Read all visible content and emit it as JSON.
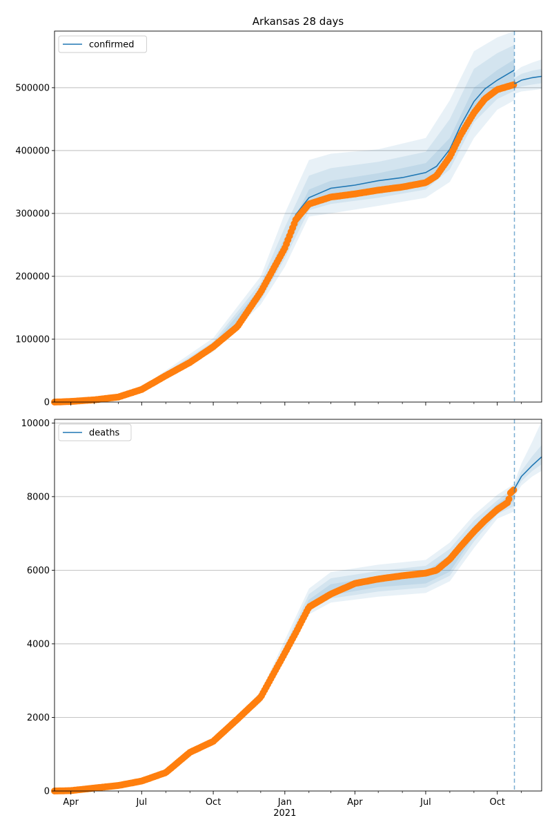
{
  "chart_data": [
    {
      "type": "line",
      "title": "Arkansas 28 days",
      "legend": {
        "label": "confirmed",
        "placement": "top-left"
      },
      "ylim": [
        0,
        590000
      ],
      "yticks": [
        0,
        100000,
        200000,
        300000,
        400000,
        500000
      ],
      "ytick_labels": [
        "0",
        "100000",
        "200000",
        "300000",
        "400000",
        "500000"
      ],
      "grid": "y",
      "forecast_start": "2021-10-23",
      "observed": {
        "x": [
          "2020-03-11",
          "2020-04-01",
          "2020-05-01",
          "2020-06-01",
          "2020-07-01",
          "2020-08-01",
          "2020-09-01",
          "2020-10-01",
          "2020-11-01",
          "2020-12-01",
          "2021-01-01",
          "2021-01-15",
          "2021-02-01",
          "2021-03-01",
          "2021-04-01",
          "2021-05-01",
          "2021-06-01",
          "2021-07-01",
          "2021-07-15",
          "2021-08-01",
          "2021-08-15",
          "2021-09-01",
          "2021-09-15",
          "2021-10-01",
          "2021-10-23"
        ],
        "y": [
          0,
          1000,
          3500,
          8000,
          20000,
          42000,
          63000,
          88000,
          120000,
          175000,
          245000,
          290000,
          315000,
          326000,
          331000,
          337000,
          342000,
          349000,
          360000,
          390000,
          425000,
          460000,
          482000,
          497000,
          505000
        ]
      },
      "model": {
        "x": [
          "2020-12-01",
          "2021-01-01",
          "2021-01-15",
          "2021-02-01",
          "2021-03-01",
          "2021-04-01",
          "2021-05-01",
          "2021-06-01",
          "2021-07-01",
          "2021-07-15",
          "2021-08-01",
          "2021-08-15",
          "2021-09-01",
          "2021-09-15",
          "2021-10-01",
          "2021-10-23"
        ],
        "y": [
          175000,
          248000,
          298000,
          325000,
          340000,
          345000,
          352000,
          357000,
          365000,
          375000,
          402000,
          440000,
          478000,
          498000,
          512000,
          528000
        ]
      },
      "forecast": {
        "x": [
          "2021-10-23",
          "2021-11-01",
          "2021-11-15",
          "2021-11-27"
        ],
        "y": [
          506000,
          512000,
          516000,
          518000
        ]
      },
      "bands": [
        {
          "x": [
            "2020-07-01",
            "2020-10-01",
            "2020-12-01",
            "2021-01-01",
            "2021-02-01",
            "2021-03-01",
            "2021-05-01",
            "2021-07-01",
            "2021-08-01",
            "2021-09-01",
            "2021-10-01",
            "2021-10-23"
          ],
          "lower": [
            18000,
            80000,
            155000,
            215000,
            295000,
            300000,
            312000,
            325000,
            350000,
            420000,
            465000,
            480000
          ],
          "upper": [
            24000,
            102000,
            200000,
            300000,
            385000,
            395000,
            402000,
            420000,
            480000,
            558000,
            580000,
            590000
          ]
        },
        {
          "x": [
            "2020-07-01",
            "2020-10-01",
            "2020-12-01",
            "2021-01-01",
            "2021-02-01",
            "2021-03-01",
            "2021-05-01",
            "2021-07-01",
            "2021-08-01",
            "2021-09-01",
            "2021-10-01",
            "2021-10-23"
          ],
          "lower": [
            19500,
            84000,
            162000,
            228000,
            305000,
            315000,
            325000,
            338000,
            370000,
            445000,
            482000,
            495000
          ],
          "upper": [
            22500,
            96000,
            190000,
            278000,
            360000,
            372000,
            382000,
            398000,
            450000,
            530000,
            555000,
            568000
          ]
        },
        {
          "x": [
            "2020-07-01",
            "2020-10-01",
            "2020-12-01",
            "2021-01-01",
            "2021-02-01",
            "2021-03-01",
            "2021-05-01",
            "2021-07-01",
            "2021-08-01",
            "2021-09-01",
            "2021-10-01",
            "2021-10-23"
          ],
          "lower": [
            20500,
            87000,
            168000,
            238000,
            315000,
            328000,
            338000,
            350000,
            385000,
            462000,
            495000,
            508000
          ],
          "upper": [
            21500,
            92000,
            182000,
            262000,
            338000,
            352000,
            364000,
            380000,
            420000,
            500000,
            528000,
            545000
          ]
        },
        {
          "x": [
            "2021-10-23",
            "2021-11-01",
            "2021-11-15",
            "2021-11-27"
          ],
          "lower": [
            490000,
            494000,
            496000,
            498000
          ],
          "upper": [
            525000,
            533000,
            540000,
            545000
          ]
        },
        {
          "x": [
            "2021-10-23",
            "2021-11-01",
            "2021-11-15",
            "2021-11-27"
          ],
          "lower": [
            498000,
            502000,
            505000,
            507000
          ],
          "upper": [
            515000,
            522000,
            527000,
            530000
          ]
        }
      ]
    },
    {
      "type": "line",
      "title": "",
      "legend": {
        "label": "deaths",
        "placement": "top-left"
      },
      "ylim": [
        0,
        10100
      ],
      "yticks": [
        0,
        2000,
        4000,
        6000,
        8000,
        10000
      ],
      "ytick_labels": [
        "0",
        "2000",
        "4000",
        "6000",
        "8000",
        "10000"
      ],
      "grid": "y",
      "forecast_start": "2021-10-23",
      "observed": {
        "x": [
          "2020-03-11",
          "2020-04-01",
          "2020-05-01",
          "2020-06-01",
          "2020-07-01",
          "2020-08-01",
          "2020-09-01",
          "2020-10-01",
          "2020-11-01",
          "2020-12-01",
          "2021-01-01",
          "2021-01-15",
          "2021-02-01",
          "2021-03-01",
          "2021-04-01",
          "2021-05-01",
          "2021-06-01",
          "2021-07-01",
          "2021-07-15",
          "2021-08-01",
          "2021-08-15",
          "2021-09-01",
          "2021-09-15",
          "2021-10-01",
          "2021-10-15",
          "2021-10-18",
          "2021-10-23"
        ],
        "y": [
          0,
          10,
          80,
          150,
          270,
          500,
          1050,
          1350,
          1950,
          2550,
          3750,
          4300,
          5000,
          5350,
          5640,
          5760,
          5850,
          5920,
          6000,
          6300,
          6650,
          7050,
          7350,
          7650,
          7850,
          8100,
          8200
        ]
      },
      "model": {
        "x": [
          "2021-10-23"
        ],
        "y": [
          8200
        ]
      },
      "forecast": {
        "x": [
          "2021-10-23",
          "2021-11-01",
          "2021-11-15",
          "2021-11-27"
        ],
        "y": [
          8210,
          8550,
          8850,
          9080
        ]
      },
      "bands": [
        {
          "x": [
            "2020-10-01",
            "2020-12-01",
            "2021-01-01",
            "2021-02-01",
            "2021-03-01",
            "2021-05-01",
            "2021-07-01",
            "2021-08-01",
            "2021-09-01",
            "2021-10-01",
            "2021-10-23"
          ],
          "lower": [
            1300,
            2400,
            3550,
            4800,
            5120,
            5280,
            5380,
            5700,
            6600,
            7400,
            7600
          ],
          "upper": [
            1400,
            2700,
            4100,
            5500,
            5950,
            6150,
            6280,
            6750,
            7500,
            8050,
            8350
          ]
        },
        {
          "x": [
            "2020-10-01",
            "2020-12-01",
            "2021-01-01",
            "2021-02-01",
            "2021-03-01",
            "2021-05-01",
            "2021-07-01",
            "2021-08-01",
            "2021-09-01",
            "2021-10-01",
            "2021-10-23"
          ],
          "lower": [
            1320,
            2460,
            3650,
            4900,
            5230,
            5420,
            5530,
            5850,
            6780,
            7520,
            7750
          ],
          "upper": [
            1380,
            2640,
            3950,
            5350,
            5780,
            5980,
            6120,
            6580,
            7350,
            7900,
            8250
          ]
        },
        {
          "x": [
            "2020-10-01",
            "2020-12-01",
            "2021-01-01",
            "2021-02-01",
            "2021-03-01",
            "2021-05-01",
            "2021-07-01",
            "2021-08-01",
            "2021-09-01",
            "2021-10-01",
            "2021-10-23"
          ],
          "lower": [
            1335,
            2510,
            3720,
            4960,
            5320,
            5540,
            5640,
            5960,
            6920,
            7620,
            7880
          ],
          "upper": [
            1365,
            2590,
            3860,
            5200,
            5620,
            5830,
            5960,
            6420,
            7200,
            7800,
            8150
          ]
        },
        {
          "x": [
            "2021-10-23",
            "2021-11-01",
            "2021-11-15",
            "2021-11-27"
          ],
          "lower": [
            8000,
            8300,
            8550,
            8700
          ],
          "upper": [
            8400,
            8900,
            9500,
            10050
          ]
        },
        {
          "x": [
            "2021-10-23",
            "2021-11-01",
            "2021-11-15",
            "2021-11-27"
          ],
          "lower": [
            8100,
            8420,
            8700,
            8880
          ],
          "upper": [
            8300,
            8700,
            9100,
            9400
          ]
        }
      ]
    }
  ],
  "x_axis": {
    "range": [
      "2020-03-11",
      "2021-11-27"
    ],
    "ticks": [
      {
        "date": "2020-04-01",
        "label": "Apr"
      },
      {
        "date": "2020-07-01",
        "label": "Jul"
      },
      {
        "date": "2020-10-01",
        "label": "Oct"
      },
      {
        "date": "2021-01-01",
        "label": "Jan"
      },
      {
        "date": "2021-04-01",
        "label": "Apr"
      },
      {
        "date": "2021-07-01",
        "label": "Jul"
      },
      {
        "date": "2021-10-01",
        "label": "Oct"
      }
    ],
    "minor_ticks": [
      "2020-05-01",
      "2020-06-01",
      "2020-08-01",
      "2020-09-01",
      "2020-11-01",
      "2020-12-01",
      "2021-02-01",
      "2021-03-01",
      "2021-05-01",
      "2021-06-01",
      "2021-08-01",
      "2021-09-01",
      "2021-11-01"
    ],
    "year_label": "2021"
  },
  "colors": {
    "line": "#1f77b4",
    "band": "#1f77b4",
    "points": "#ff7f0e",
    "forecast_line": "#1f77b4",
    "grid": "#b0b0b0"
  }
}
